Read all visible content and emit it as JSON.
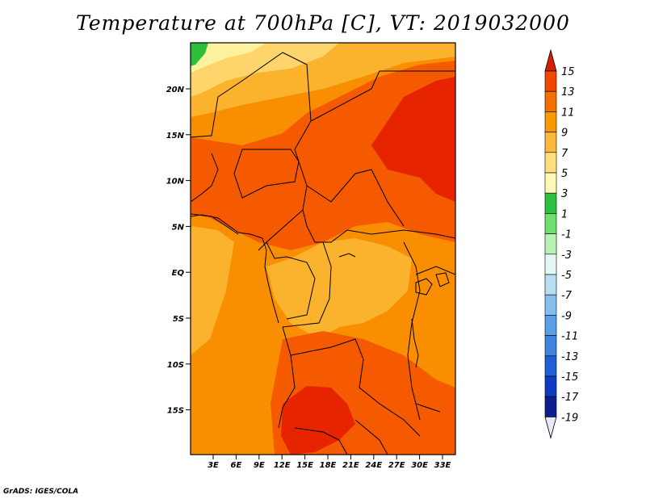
{
  "title": "Temperature at 700hPa [C], VT: 2019032000",
  "credit": "GrADS: IGES/COLA",
  "map": {
    "lat_labels": [
      "20N",
      "15N",
      "10N",
      "5N",
      "EQ",
      "5S",
      "10S",
      "15S"
    ],
    "lon_labels": [
      "3E",
      "6E",
      "9E",
      "12E",
      "15E",
      "18E",
      "21E",
      "24E",
      "27E",
      "30E",
      "33E"
    ],
    "colors": {
      "c15": "#e62400",
      "c13": "#f55a00",
      "c11": "#f98f00",
      "c9": "#fbb22c",
      "c7": "#fdd56a",
      "c5": "#fff29e",
      "c3": "#2dbe3a",
      "c1": "#66dd66"
    }
  },
  "colorbar": {
    "levels": [
      "15",
      "13",
      "11",
      "9",
      "7",
      "5",
      "3",
      "1",
      "-1",
      "-3",
      "-5",
      "-7",
      "-9",
      "-11",
      "-13",
      "-15",
      "-17",
      "-19"
    ],
    "colors": [
      "#d42000",
      "#f04800",
      "#f57000",
      "#f89a00",
      "#fbb83a",
      "#fde07d",
      "#fff7b8",
      "#2ec040",
      "#6fe070",
      "#b6f2b4",
      "#e3f7f7",
      "#b8dcf2",
      "#86bfee",
      "#5a9fe8",
      "#3f83e0",
      "#1e5fd8",
      "#0d3bc2",
      "#0a1e8e",
      "#050a5a"
    ]
  }
}
